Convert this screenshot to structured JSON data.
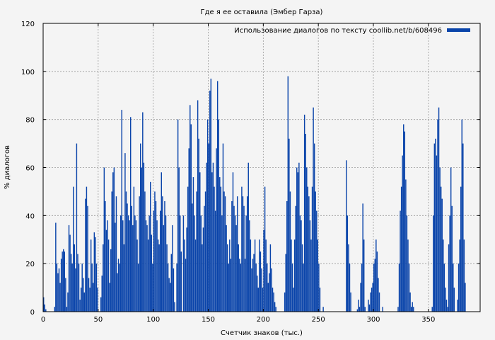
{
  "chart_data": {
    "type": "bar",
    "title": "Где я ее оставила (Эмбер Гарза)",
    "xlabel": "Счетчик знаков (тыс.)",
    "ylabel": "% диалогов",
    "xlim": [
      0,
      397
    ],
    "ylim": [
      0,
      120
    ],
    "xticks": [
      0,
      50,
      100,
      150,
      200,
      250,
      300,
      350
    ],
    "yticks": [
      0,
      20,
      40,
      60,
      80,
      100,
      120
    ],
    "grid": true,
    "legend_position": "top-right",
    "bar_color": "#0a44aa",
    "series": [
      {
        "name": "Использование диалогов по тексту coollib.net/b/608496",
        "x_start": 0,
        "x_step": 1,
        "values": [
          6,
          3,
          1,
          0,
          0,
          0,
          0,
          0,
          0,
          0,
          2,
          37,
          20,
          16,
          18,
          12,
          22,
          25,
          26,
          25,
          14,
          2,
          8,
          36,
          32,
          24,
          20,
          52,
          28,
          18,
          70,
          24,
          20,
          5,
          10,
          20,
          14,
          8,
          47,
          52,
          44,
          14,
          10,
          30,
          20,
          12,
          33,
          31,
          20,
          10,
          0,
          0,
          6,
          15,
          28,
          60,
          46,
          34,
          38,
          30,
          12,
          26,
          50,
          58,
          60,
          37,
          48,
          16,
          22,
          20,
          40,
          84,
          38,
          28,
          66,
          50,
          45,
          40,
          38,
          81,
          44,
          36,
          52,
          40,
          38,
          30,
          20,
          48,
          70,
          60,
          83,
          62,
          50,
          38,
          36,
          30,
          40,
          54,
          32,
          20,
          42,
          50,
          46,
          38,
          30,
          28,
          42,
          58,
          48,
          36,
          46,
          40,
          28,
          20,
          14,
          12,
          24,
          36,
          18,
          4,
          0,
          20,
          80,
          60,
          40,
          25,
          0,
          40,
          30,
          22,
          35,
          52,
          68,
          86,
          78,
          45,
          56,
          40,
          30,
          50,
          88,
          72,
          58,
          40,
          28,
          35,
          44,
          50,
          62,
          80,
          70,
          92,
          97,
          58,
          62,
          52,
          42,
          68,
          96,
          80,
          56,
          52,
          40,
          70,
          50,
          48,
          36,
          28,
          20,
          30,
          22,
          46,
          58,
          44,
          40,
          36,
          48,
          28,
          22,
          20,
          52,
          48,
          44,
          22,
          40,
          48,
          62,
          38,
          30,
          18,
          22,
          24,
          30,
          20,
          15,
          10,
          30,
          25,
          18,
          10,
          34,
          52,
          30,
          20,
          12,
          16,
          28,
          18,
          10,
          8,
          4,
          2,
          0,
          0,
          0,
          0,
          0,
          0,
          0,
          8,
          24,
          46,
          98,
          72,
          50,
          30,
          20,
          10,
          30,
          44,
          60,
          58,
          62,
          40,
          38,
          28,
          20,
          82,
          74,
          60,
          52,
          48,
          38,
          30,
          52,
          85,
          70,
          50,
          42,
          30,
          20,
          10,
          0,
          0,
          2,
          0,
          0,
          0,
          0,
          0,
          0,
          0,
          0,
          0,
          0,
          0,
          0,
          0,
          0,
          0,
          0,
          0,
          0,
          0,
          0,
          63,
          40,
          28,
          20,
          8,
          0,
          0,
          0,
          0,
          0,
          1,
          5,
          2,
          12,
          20,
          45,
          30,
          2,
          0,
          0,
          5,
          3,
          8,
          10,
          12,
          20,
          22,
          30,
          25,
          14,
          8,
          0,
          0,
          2,
          0,
          0,
          0,
          0,
          0,
          0,
          0,
          0,
          0,
          0,
          0,
          0,
          0,
          2,
          20,
          42,
          52,
          65,
          78,
          75,
          55,
          40,
          30,
          20,
          8,
          2,
          4,
          2,
          0,
          0,
          0,
          0,
          0,
          0,
          0,
          0,
          0,
          0,
          0,
          0,
          0,
          0,
          0,
          0,
          2,
          40,
          70,
          72,
          65,
          80,
          85,
          60,
          52,
          47,
          30,
          20,
          10,
          5,
          2,
          28,
          40,
          60,
          44,
          20,
          10,
          0,
          0,
          5,
          20,
          30,
          52,
          80,
          70,
          30,
          12,
          0,
          0,
          0,
          0,
          0,
          0,
          0,
          0
        ]
      }
    ]
  }
}
